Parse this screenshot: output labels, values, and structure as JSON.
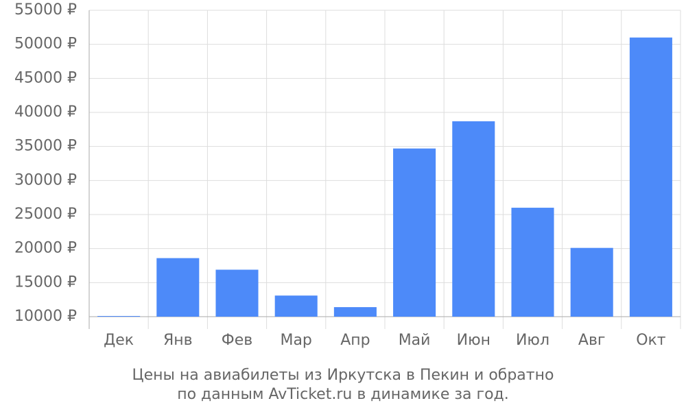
{
  "chart_data": {
    "type": "bar",
    "title": "Цены на авиабилеты из Иркутска в Пекин и обратно",
    "subtitle": "по данным AvTicket.ru в динамике за год.",
    "categories": [
      "Дек",
      "Янв",
      "Фев",
      "Мар",
      "Апр",
      "Май",
      "Июн",
      "Июл",
      "Авг",
      "Окт"
    ],
    "values": [
      10100,
      18600,
      16900,
      13100,
      11400,
      34700,
      38700,
      26000,
      20100,
      51000
    ],
    "color": "#4d8af9",
    "ylim": [
      10000,
      55000
    ],
    "yticks": [
      {
        "value": 10000,
        "label": "10000 ₽"
      },
      {
        "value": 15000,
        "label": "15000 ₽"
      },
      {
        "value": 20000,
        "label": "20000 ₽"
      },
      {
        "value": 25000,
        "label": "25000 ₽"
      },
      {
        "value": 30000,
        "label": "30000 ₽"
      },
      {
        "value": 35000,
        "label": "35000 ₽"
      },
      {
        "value": 40000,
        "label": "40000 ₽"
      },
      {
        "value": 45000,
        "label": "45000 ₽"
      },
      {
        "value": 50000,
        "label": "50000 ₽"
      },
      {
        "value": 55000,
        "label": "55000 ₽"
      }
    ],
    "grid": true
  }
}
